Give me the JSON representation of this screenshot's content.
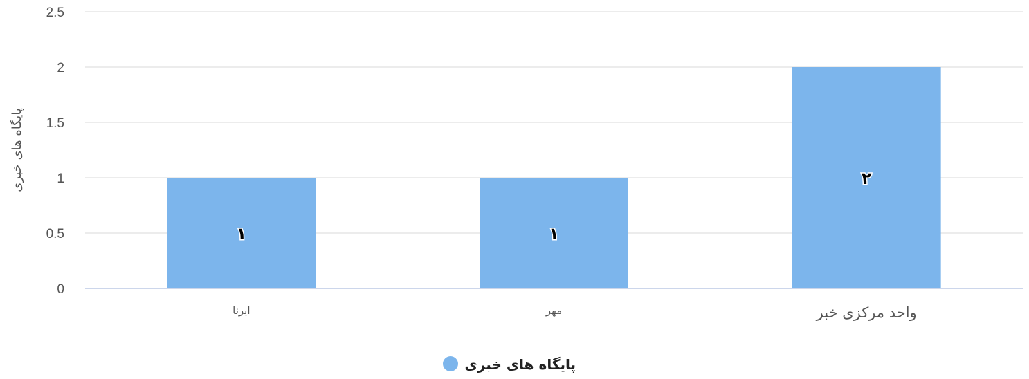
{
  "chart_data": {
    "type": "bar",
    "categories": [
      "ایرنا",
      "مهر",
      "واحد مرکزی خبر"
    ],
    "series": [
      {
        "name": "پایگاه های خبری",
        "values": [
          1,
          1,
          2
        ]
      }
    ],
    "data_labels": [
      "۱",
      "۱",
      "۲"
    ],
    "title": "",
    "xlabel": "",
    "ylabel": "پایگاه های خبری",
    "ylim": [
      0,
      2.5
    ],
    "yticks": [
      "0",
      "0.5",
      "1",
      "1.5",
      "2",
      "2.5"
    ],
    "grid": true,
    "legend_position": "bottom-center",
    "colors": {
      "bar": "#7cb5ec",
      "grid": "#e6e6e6",
      "axis": "#ccd6eb"
    }
  }
}
